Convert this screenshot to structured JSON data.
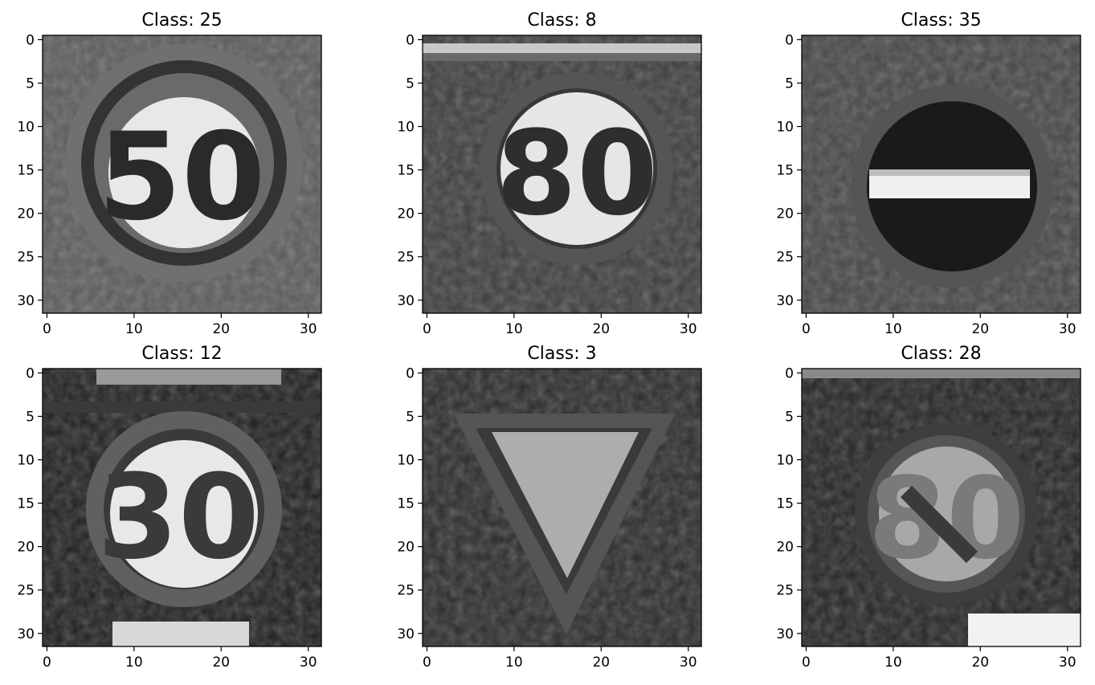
{
  "chart_data": [
    {
      "type": "heatmap",
      "title": "Class: 25",
      "image_description": "grayscale 32x32 circular traffic sign with number 50",
      "x_ticks": [
        0,
        10,
        20,
        30
      ],
      "y_ticks": [
        0,
        5,
        10,
        15,
        20,
        25,
        30
      ],
      "xlim": [
        -0.5,
        31.5
      ],
      "ylim": [
        31.5,
        -0.5
      ],
      "colormap": "gray"
    },
    {
      "type": "heatmap",
      "title": "Class: 8",
      "image_description": "grayscale 32x32 circular traffic sign with number 80",
      "x_ticks": [
        0,
        10,
        20,
        30
      ],
      "y_ticks": [
        0,
        5,
        10,
        15,
        20,
        25,
        30
      ],
      "xlim": [
        -0.5,
        31.5
      ],
      "ylim": [
        31.5,
        -0.5
      ],
      "colormap": "gray"
    },
    {
      "type": "heatmap",
      "title": "Class: 35",
      "image_description": "grayscale 32x32 no-entry sign: dark circle with white horizontal bar",
      "x_ticks": [
        0,
        10,
        20,
        30
      ],
      "y_ticks": [
        0,
        5,
        10,
        15,
        20,
        25,
        30
      ],
      "xlim": [
        -0.5,
        31.5
      ],
      "ylim": [
        31.5,
        -0.5
      ],
      "colormap": "gray"
    },
    {
      "type": "heatmap",
      "title": "Class: 12",
      "image_description": "grayscale 32x32 circular traffic sign with number 30",
      "x_ticks": [
        0,
        10,
        20,
        30
      ],
      "y_ticks": [
        0,
        5,
        10,
        15,
        20,
        25,
        30
      ],
      "xlim": [
        -0.5,
        31.5
      ],
      "ylim": [
        31.5,
        -0.5
      ],
      "colormap": "gray"
    },
    {
      "type": "heatmap",
      "title": "Class: 3",
      "image_description": "grayscale 32x32 inverted triangle yield sign",
      "x_ticks": [
        0,
        10,
        20,
        30
      ],
      "y_ticks": [
        0,
        5,
        10,
        15,
        20,
        25,
        30
      ],
      "xlim": [
        -0.5,
        31.5
      ],
      "ylim": [
        31.5,
        -0.5
      ],
      "colormap": "gray"
    },
    {
      "type": "heatmap",
      "title": "Class: 28",
      "image_description": "grayscale 32x32 circular end-of-speed-limit sign with diagonal stripe",
      "x_ticks": [
        0,
        10,
        20,
        30
      ],
      "y_ticks": [
        0,
        5,
        10,
        15,
        20,
        25,
        30
      ],
      "xlim": [
        -0.5,
        31.5
      ],
      "ylim": [
        31.5,
        -0.5
      ],
      "colormap": "gray"
    }
  ]
}
